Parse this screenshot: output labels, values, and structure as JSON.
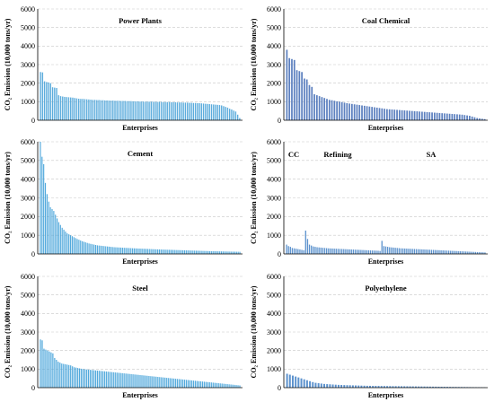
{
  "chart_data": [
    {
      "type": "bar",
      "title": "Power Plants",
      "xlabel": "Enterprises",
      "ylabel": "CO₂ Emission (10,000 tons/yr)",
      "ylim": [
        0,
        6000
      ],
      "yticks": [
        "0",
        "1000",
        "2000",
        "3000",
        "4000",
        "5000",
        "6000"
      ],
      "grid": true,
      "color": "#4aa3d8",
      "values": [
        2600,
        2580,
        2100,
        2060,
        2040,
        2000,
        1780,
        1760,
        1740,
        1350,
        1300,
        1280,
        1260,
        1250,
        1240,
        1230,
        1220,
        1200,
        1180,
        1160,
        1150,
        1150,
        1140,
        1130,
        1120,
        1110,
        1100,
        1100,
        1090,
        1090,
        1080,
        1080,
        1070,
        1070,
        1060,
        1060,
        1060,
        1050,
        1050,
        1050,
        1040,
        1040,
        1040,
        1030,
        1030,
        1030,
        1020,
        1020,
        1020,
        1010,
        1010,
        1010,
        1000,
        1000,
        1000,
        1000,
        1000,
        990,
        990,
        990,
        990,
        980,
        980,
        980,
        980,
        970,
        970,
        970,
        960,
        960,
        960,
        950,
        950,
        950,
        940,
        940,
        930,
        930,
        920,
        920,
        910,
        900,
        890,
        880,
        870,
        860,
        850,
        840,
        830,
        820,
        800,
        760,
        720,
        680,
        620,
        580,
        520,
        470,
        300,
        120
      ]
    },
    {
      "type": "bar",
      "title": "Coal Chemical",
      "xlabel": "Enterprises",
      "ylabel": "CO₂ Emission (10,000 tons/yr)",
      "ylim": [
        0,
        6000
      ],
      "yticks": [
        "0",
        "1000",
        "2000",
        "3000",
        "4000",
        "5000",
        "6000"
      ],
      "grid": true,
      "color": "#4a72b8",
      "values": [
        3800,
        3350,
        3300,
        3250,
        2700,
        2650,
        2600,
        2250,
        2200,
        1900,
        1800,
        1400,
        1350,
        1300,
        1250,
        1200,
        1150,
        1100,
        1080,
        1050,
        1020,
        1000,
        980,
        950,
        920,
        900,
        880,
        860,
        840,
        820,
        800,
        780,
        760,
        740,
        720,
        700,
        680,
        660,
        640,
        620,
        600,
        590,
        580,
        570,
        560,
        550,
        540,
        530,
        520,
        510,
        500,
        490,
        480,
        470,
        460,
        450,
        440,
        430,
        420,
        410,
        400,
        390,
        380,
        370,
        360,
        350,
        340,
        330,
        320,
        310,
        300,
        280,
        260,
        240,
        200,
        160,
        120,
        100,
        80,
        60
      ]
    },
    {
      "type": "bar",
      "title": "Cement",
      "xlabel": "Enterprises",
      "ylabel": "CO₂ Emission (10,000 tons/yr)",
      "ylim": [
        0,
        6000
      ],
      "yticks": [
        "0",
        "1000",
        "2000",
        "3000",
        "4000",
        "5000",
        "6000"
      ],
      "grid": true,
      "color": "#3fa0d8",
      "values": [
        6000,
        5200,
        4800,
        3800,
        3200,
        2800,
        2500,
        2400,
        2300,
        2100,
        1900,
        1700,
        1550,
        1400,
        1300,
        1200,
        1100,
        1050,
        1000,
        950,
        900,
        850,
        800,
        760,
        720,
        680,
        650,
        620,
        590,
        560,
        540,
        520,
        500,
        480,
        460,
        450,
        440,
        430,
        420,
        410,
        400,
        390,
        380,
        370,
        360,
        355,
        350,
        345,
        340,
        335,
        330,
        325,
        320,
        315,
        310,
        305,
        300,
        296,
        292,
        288,
        284,
        280,
        276,
        272,
        268,
        264,
        260,
        256,
        252,
        248,
        244,
        240,
        237,
        234,
        231,
        228,
        225,
        222,
        219,
        216,
        213,
        210,
        207,
        204,
        201,
        198,
        195,
        192,
        189,
        186,
        183,
        180,
        177,
        174,
        171,
        168,
        165,
        162,
        159,
        156,
        153,
        150,
        148,
        146,
        144,
        142,
        140,
        138,
        136,
        134,
        132,
        130,
        128,
        126,
        124,
        122,
        120,
        118,
        116,
        114
      ]
    },
    {
      "type": "bar",
      "title": "",
      "xlabel": "Enterprises",
      "ylabel": "CO₂ Emission (10,000 tons/yr)",
      "ylim": [
        0,
        6000
      ],
      "yticks": [
        "0",
        "1000",
        "2000",
        "3000",
        "4000",
        "5000",
        "6000"
      ],
      "grid": true,
      "color": "#4a86c8",
      "groups": [
        {
          "name": "CC",
          "values": [
            500,
            420,
            380,
            320,
            300,
            280,
            260,
            240,
            220,
            200
          ]
        },
        {
          "name": "Refining",
          "values": [
            1250,
            800,
            500,
            450,
            400,
            380,
            360,
            350,
            340,
            330,
            320,
            310,
            300,
            295,
            290,
            285,
            280,
            275,
            270,
            265,
            260,
            255,
            250,
            245,
            240,
            235,
            230,
            225,
            220,
            215,
            210,
            205,
            200,
            195,
            190,
            185,
            180,
            175,
            170,
            160
          ]
        },
        {
          "name": "SA",
          "values": [
            700,
            420,
            400,
            380,
            360,
            350,
            340,
            330,
            320,
            310,
            300,
            295,
            290,
            285,
            280,
            275,
            270,
            265,
            260,
            255,
            250,
            245,
            240,
            235,
            230,
            225,
            220,
            215,
            210,
            205,
            200,
            195,
            190,
            185,
            180,
            175,
            170,
            165,
            160,
            155,
            150,
            145,
            140,
            135,
            130,
            125,
            120,
            115,
            110,
            105,
            100,
            95,
            90,
            85,
            80
          ]
        }
      ]
    },
    {
      "type": "bar",
      "title": "Steel",
      "xlabel": "Enterprises",
      "ylabel": "CO₂ Emission (10,000 tons/yr)",
      "ylim": [
        0,
        6000
      ],
      "yticks": [
        "0",
        "1000",
        "2000",
        "3000",
        "4000",
        "5000",
        "6000"
      ],
      "grid": true,
      "color": "#3fa0d8",
      "values": [
        2600,
        2550,
        2100,
        2050,
        2000,
        1950,
        1900,
        1850,
        1600,
        1500,
        1400,
        1350,
        1300,
        1280,
        1260,
        1240,
        1220,
        1200,
        1150,
        1100,
        1080,
        1060,
        1040,
        1020,
        1000,
        990,
        980,
        970,
        960,
        950,
        940,
        930,
        920,
        910,
        900,
        890,
        880,
        870,
        860,
        850,
        840,
        830,
        820,
        810,
        800,
        790,
        780,
        770,
        760,
        750,
        740,
        730,
        720,
        710,
        700,
        690,
        680,
        670,
        660,
        650,
        640,
        630,
        620,
        610,
        600,
        590,
        580,
        570,
        560,
        550,
        540,
        530,
        520,
        510,
        500,
        490,
        480,
        470,
        460,
        450,
        440,
        430,
        420,
        410,
        400,
        390,
        380,
        370,
        360,
        350,
        340,
        330,
        320,
        310,
        300,
        290,
        280,
        270,
        260,
        250,
        240,
        230,
        220,
        210,
        200,
        190,
        180,
        170,
        160,
        150,
        140,
        130,
        120
      ]
    },
    {
      "type": "bar",
      "title": "Polyethylene",
      "xlabel": "Enterprises",
      "ylabel": "CO₂ Emission (10,000 tons/yr)",
      "ylim": [
        0,
        6000
      ],
      "yticks": [
        "0",
        "1000",
        "2000",
        "3000",
        "4000",
        "5000",
        "6000"
      ],
      "grid": true,
      "color": "#4a86c8",
      "values": [
        750,
        700,
        650,
        600,
        550,
        500,
        450,
        400,
        350,
        300,
        260,
        240,
        220,
        200,
        190,
        180,
        170,
        160,
        150,
        145,
        140,
        135,
        130,
        125,
        120,
        115,
        110,
        105,
        100,
        98,
        96,
        94,
        92,
        90,
        88,
        86,
        84,
        82,
        80,
        78,
        76,
        74,
        72,
        70,
        68,
        66,
        64,
        62,
        60,
        58,
        56,
        54,
        52,
        50,
        48,
        46,
        44,
        42,
        40,
        38,
        36,
        34,
        32,
        30,
        28,
        26,
        24,
        22,
        20,
        18
      ]
    }
  ]
}
